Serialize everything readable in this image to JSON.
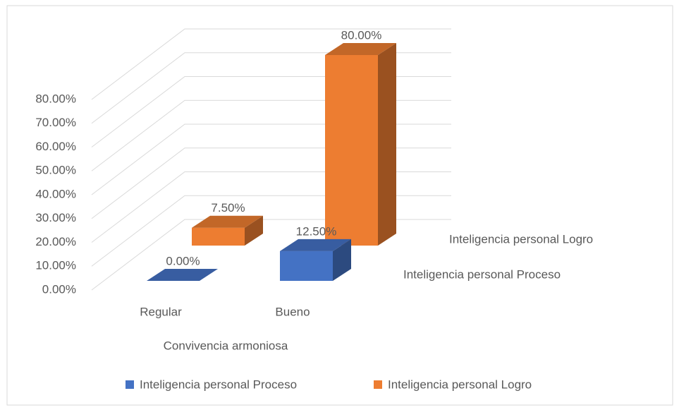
{
  "chart_data": {
    "type": "bar3d",
    "categories": [
      "Regular",
      "Bueno"
    ],
    "series": [
      {
        "name": "Inteligencia personal Proceso",
        "color": "#4472c4",
        "values": [
          0,
          12.5
        ],
        "value_labels": [
          "0.00%",
          "12.50%"
        ]
      },
      {
        "name": "Inteligencia personal Logro",
        "color": "#ed7d31",
        "values": [
          7.5,
          80
        ],
        "value_labels": [
          "7.50%",
          "80.00%"
        ]
      }
    ],
    "x_label": "Convivencia armoniosa",
    "ylim": [
      0,
      80
    ],
    "yticks": [
      {
        "value": 0,
        "label": "0.00%"
      },
      {
        "value": 10,
        "label": "10.00%"
      },
      {
        "value": 20,
        "label": "20.00%"
      },
      {
        "value": 30,
        "label": "30.00%"
      },
      {
        "value": 40,
        "label": "40.00%"
      },
      {
        "value": 50,
        "label": "50.00%"
      },
      {
        "value": 60,
        "label": "60.00%"
      },
      {
        "value": 70,
        "label": "70.00%"
      },
      {
        "value": 80,
        "label": "80.00%"
      }
    ],
    "grid": true,
    "legend": "bottom"
  }
}
